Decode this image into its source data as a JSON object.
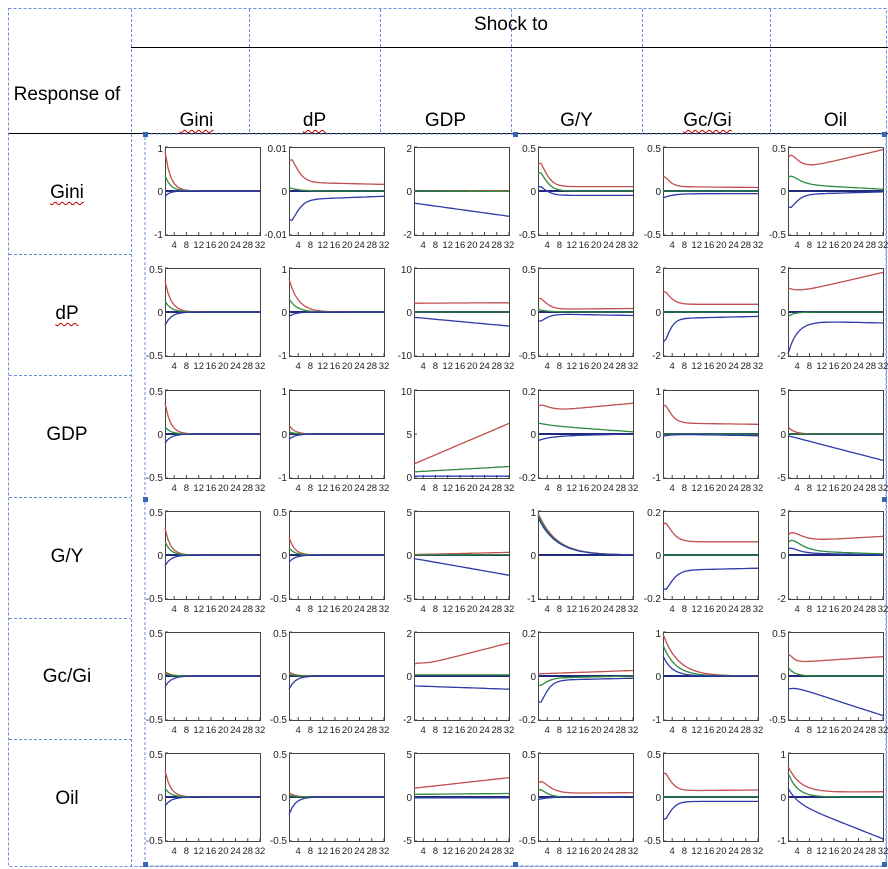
{
  "header": {
    "shock_title": "Shock to",
    "response_title": "Response of",
    "columns": [
      "Gini",
      "dP",
      "GDP",
      "G/Y",
      "Gc/Gi",
      "Oil"
    ],
    "rows": [
      "Gini",
      "dP",
      "GDP",
      "G/Y",
      "Gc/Gi",
      "Oil"
    ]
  },
  "colors": {
    "upper": "#c0504d",
    "middle": "#2e8b3e",
    "lower": "#2f3aa8",
    "zero": "#1f2a7a",
    "grid_dash": "#6b8fd6"
  },
  "x_ticks": [
    4,
    8,
    12,
    16,
    20,
    24,
    28,
    32
  ],
  "chart_data": {
    "type": "line",
    "horizon": 32,
    "panels": [
      [
        {
          "ylim": [
            -1,
            1
          ],
          "yticks": [
            "1",
            "0",
            "-1"
          ],
          "shapes": {
            "u": {
              "a": 0.9,
              "d": 1.8
            },
            "m": {
              "a": 0.35,
              "d": 1.8
            },
            "l": {
              "a": -0.12,
              "d": 1.5
            }
          }
        },
        {
          "ylim": [
            -0.01,
            0.01
          ],
          "yticks": [
            "0.01",
            "0",
            "-0.01"
          ],
          "shapes": {
            "u": {
              "a": 0.006,
              "d": 6,
              "p": 2,
              "i": 0.002,
              "e": 0.0015
            },
            "m": {
              "a": 0.0008,
              "d": 3
            },
            "l": {
              "a": -0.0055,
              "d": 6,
              "p": 2,
              "i": -0.002,
              "e": -0.0012
            }
          }
        },
        {
          "ylim": [
            -2,
            2
          ],
          "yticks": [
            "2",
            "0",
            "-2"
          ],
          "shapes": {
            "u": {
              "e": 0.02
            },
            "m": {
              "e": -0.02
            },
            "l": {
              "i": -0.55,
              "e": -1.15
            }
          }
        },
        {
          "ylim": [
            -0.5,
            0.5
          ],
          "yticks": [
            "0.5",
            "0",
            "-0.5"
          ],
          "shapes": {
            "u": {
              "a": 0.32,
              "d": 5,
              "p": 2,
              "i": 0.05
            },
            "m": {
              "a": 0.25,
              "d": 5,
              "p": 2
            },
            "l": {
              "a": 0.12,
              "d": 5,
              "p": 2,
              "i": -0.05
            }
          }
        },
        {
          "ylim": [
            -0.5,
            0.5
          ],
          "yticks": [
            "0.5",
            "0",
            "-0.5"
          ],
          "shapes": {
            "u": {
              "a": 0.14,
              "d": 3,
              "p": 2,
              "i": 0.05,
              "e": 0.04
            },
            "m": {
              "e": 0.0
            },
            "l": {
              "a": -0.05,
              "d": 3,
              "i": -0.03,
              "e": -0.03
            }
          }
        },
        {
          "ylim": [
            -0.5,
            0.5
          ],
          "yticks": [
            "0.5",
            "0",
            "-0.5"
          ],
          "shapes": {
            "u": {
              "a": 0.25,
              "d": 4,
              "p": 3,
              "i": 0.22,
              "e": 0.47
            },
            "m": {
              "a": 0.12,
              "d": 5,
              "p": 3,
              "i": 0.08,
              "e": 0.02
            },
            "l": {
              "a": -0.22,
              "d": 3,
              "p": 3,
              "i": -0.04,
              "e": -0.01
            }
          }
        }
      ],
      [
        {
          "ylim": [
            -0.5,
            0.5
          ],
          "yticks": [
            "0.5",
            "0",
            "-0.5"
          ],
          "shapes": {
            "u": {
              "a": 0.35,
              "d": 2
            },
            "m": {
              "a": 0.12,
              "d": 2
            },
            "l": {
              "a": -0.15,
              "d": 2
            }
          }
        },
        {
          "ylim": [
            -1,
            1
          ],
          "yticks": [
            "1",
            "0",
            "-1"
          ],
          "shapes": {
            "u": {
              "a": 0.75,
              "d": 3
            },
            "m": {
              "a": 0.3,
              "d": 2.5
            },
            "l": {
              "a": -0.1,
              "d": 2
            }
          }
        },
        {
          "ylim": [
            -10,
            10
          ],
          "yticks": [
            "10",
            "0",
            "-10"
          ],
          "shapes": {
            "u": {
              "i": 2,
              "e": 2.1
            },
            "m": {
              "e": 0
            },
            "l": {
              "i": -1.2,
              "e": -3.2
            }
          }
        },
        {
          "ylim": [
            -0.5,
            0.5
          ],
          "yticks": [
            "0.5",
            "0",
            "-0.5"
          ],
          "shapes": {
            "u": {
              "a": 0.15,
              "d": 5,
              "p": 2,
              "i": 0.03,
              "e": 0.04
            },
            "m": {
              "a": 0.03,
              "d": 3
            },
            "l": {
              "a": -0.1,
              "d": 5,
              "p": 2,
              "i": -0.02,
              "e": -0.04
            }
          }
        },
        {
          "ylim": [
            -2,
            2
          ],
          "yticks": [
            "2",
            "0",
            "-2"
          ],
          "shapes": {
            "u": {
              "a": 0.7,
              "d": 4,
              "p": 2,
              "i": 0.35,
              "e": 0.35
            },
            "m": {
              "e": 0
            },
            "l": {
              "a": -1.3,
              "d": 3,
              "p": 2,
              "i": -0.3,
              "e": -0.2
            }
          }
        },
        {
          "ylim": [
            -2,
            2
          ],
          "yticks": [
            "2",
            "0",
            "-2"
          ],
          "shapes": {
            "u": {
              "a": 0.3,
              "d": 3,
              "i": 0.8,
              "e": 1.8
            },
            "m": {
              "a": -0.2,
              "d": 2,
              "e": 0
            },
            "l": {
              "a": -1.5,
              "d": 3,
              "i": -0.4,
              "e": -0.5
            }
          }
        }
      ],
      [
        {
          "ylim": [
            -0.5,
            0.5
          ],
          "yticks": [
            "0.5",
            "0",
            "-0.5"
          ],
          "shapes": {
            "u": {
              "a": 0.35,
              "d": 1.8
            },
            "m": {
              "a": 0.08,
              "d": 1.8
            },
            "l": {
              "a": -0.1,
              "d": 2
            }
          }
        },
        {
          "ylim": [
            -1,
            1
          ],
          "yticks": [
            "1",
            "0",
            "-1"
          ],
          "shapes": {
            "u": {
              "a": 0.2,
              "d": 1.8
            },
            "m": {
              "a": 0.05,
              "d": 1.8
            },
            "l": {
              "a": -0.12,
              "d": 2
            }
          }
        },
        {
          "ylim": [
            0,
            10
          ],
          "yticks": [
            "10",
            "5",
            "0"
          ],
          "shapes": {
            "u": {
              "i": 1.6,
              "e": 6.2
            },
            "m": {
              "i": 0.7,
              "e": 1.3
            },
            "l": {
              "i": 0.2,
              "e": 0.2
            }
          }
        },
        {
          "ylim": [
            -0.2,
            0.2
          ],
          "yticks": [
            "0.2",
            "0",
            "-0.2"
          ],
          "shapes": {
            "u": {
              "a": 0.04,
              "d": 5,
              "p": 3,
              "i": 0.1,
              "e": 0.14
            },
            "m": {
              "a": 0.01,
              "d": 5,
              "i": 0.04,
              "e": 0.01
            },
            "l": {
              "a": -0.02,
              "d": 4,
              "i": -0.01,
              "e": 0.0
            }
          }
        },
        {
          "ylim": [
            -1,
            1
          ],
          "yticks": [
            "1",
            "0",
            "-1"
          ],
          "shapes": {
            "u": {
              "a": 0.5,
              "d": 4,
              "p": 2,
              "i": 0.25,
              "e": 0.22
            },
            "m": {
              "e": 0
            },
            "l": {
              "a": -0.05,
              "d": 3,
              "e": -0.04
            }
          }
        },
        {
          "ylim": [
            -5,
            5
          ],
          "yticks": [
            "5",
            "0",
            "-5"
          ],
          "shapes": {
            "u": {
              "a": 0.8,
              "d": 2,
              "e": 0
            },
            "m": {
              "e": 0
            },
            "l": {
              "i": -0.2,
              "e": -3
            }
          }
        }
      ],
      [
        {
          "ylim": [
            -0.5,
            0.5
          ],
          "yticks": [
            "0.5",
            "0",
            "-0.5"
          ],
          "shapes": {
            "u": {
              "a": 0.3,
              "d": 1.8
            },
            "m": {
              "a": 0.15,
              "d": 1.8
            },
            "l": {
              "a": -0.12,
              "d": 2
            }
          }
        },
        {
          "ylim": [
            -0.5,
            0.5
          ],
          "yticks": [
            "0.5",
            "0",
            "-0.5"
          ],
          "shapes": {
            "u": {
              "a": 0.2,
              "d": 1.8
            },
            "m": {
              "a": 0.08,
              "d": 1.8
            },
            "l": {
              "a": -0.08,
              "d": 2
            }
          }
        },
        {
          "ylim": [
            -5,
            5
          ],
          "yticks": [
            "5",
            "0",
            "-5"
          ],
          "shapes": {
            "u": {
              "i": 0.05,
              "e": 0.3
            },
            "m": {
              "e": 0.05
            },
            "l": {
              "i": -0.4,
              "e": -2.3
            }
          }
        },
        {
          "ylim": [
            -1,
            1
          ],
          "yticks": [
            "1",
            "0",
            "-1"
          ],
          "shapes": {
            "u": {
              "a": 0.95,
              "d": 6,
              "i": 0,
              "e": 0
            },
            "m": {
              "a": 0.9,
              "d": 6
            },
            "l": {
              "a": 0.85,
              "d": 6
            }
          }
        },
        {
          "ylim": [
            -0.2,
            0.2
          ],
          "yticks": [
            "0.2",
            "0",
            "-0.2"
          ],
          "shapes": {
            "u": {
              "a": 0.1,
              "d": 6,
              "p": 2,
              "i": 0.06,
              "e": 0.06
            },
            "m": {
              "e": 0
            },
            "l": {
              "a": -0.1,
              "d": 7,
              "p": 2,
              "i": -0.07,
              "e": -0.06
            }
          }
        },
        {
          "ylim": [
            -2,
            2
          ],
          "yticks": [
            "2",
            "0",
            "-2"
          ],
          "shapes": {
            "u": {
              "a": 0.6,
              "d": 5,
              "p": 4,
              "i": 0.6,
              "e": 0.85
            },
            "m": {
              "a": 0.7,
              "d": 5,
              "p": 4,
              "i": 0.2,
              "e": 0.05
            },
            "l": {
              "a": 0.3,
              "d": 4,
              "p": 3,
              "i": 0.1,
              "e": 0.0
            }
          }
        }
      ],
      [
        {
          "ylim": [
            -0.5,
            0.5
          ],
          "yticks": [
            "0.5",
            "0",
            "-0.5"
          ],
          "shapes": {
            "u": {
              "a": 0.05,
              "d": 1.8
            },
            "m": {
              "a": 0.03,
              "d": 1.8
            },
            "l": {
              "a": -0.12,
              "d": 2
            }
          }
        },
        {
          "ylim": [
            -0.5,
            0.5
          ],
          "yticks": [
            "0.5",
            "0",
            "-0.5"
          ],
          "shapes": {
            "u": {
              "a": 0.05,
              "d": 1.8
            },
            "m": {
              "a": 0.02,
              "d": 1.8
            },
            "l": {
              "a": -0.15,
              "d": 2
            }
          }
        },
        {
          "ylim": [
            -2,
            2
          ],
          "yticks": [
            "2",
            "0",
            "-2"
          ],
          "shapes": {
            "u": {
              "a": 0.2,
              "d": 4,
              "p": 3,
              "i": 0.4,
              "e": 1.5
            },
            "m": {
              "i": 0.05,
              "e": 0.05
            },
            "l": {
              "i": -0.45,
              "e": -0.6
            }
          }
        },
        {
          "ylim": [
            -0.2,
            0.2
          ],
          "yticks": [
            "0.2",
            "0",
            "-0.2"
          ],
          "shapes": {
            "u": {
              "i": 0.01,
              "e": 0.025
            },
            "m": {
              "a": -0.04,
              "d": 5,
              "p": 2,
              "i": -0.01,
              "e": 0.0
            },
            "l": {
              "a": -0.12,
              "d": 5,
              "p": 2,
              "i": -0.02,
              "e": -0.01
            }
          }
        },
        {
          "ylim": [
            -1,
            1
          ],
          "yticks": [
            "1",
            "0",
            "-1"
          ],
          "shapes": {
            "u": {
              "a": 0.95,
              "d": 5,
              "e": 0
            },
            "m": {
              "a": 0.7,
              "d": 4,
              "e": 0
            },
            "l": {
              "a": 0.45,
              "d": 3,
              "e": 0
            }
          }
        },
        {
          "ylim": [
            -0.5,
            0.5
          ],
          "yticks": [
            "0.5",
            "0",
            "-0.5"
          ],
          "shapes": {
            "u": {
              "a": 0.12,
              "d": 2,
              "p": 2,
              "i": 0.15,
              "e": 0.22
            },
            "m": {
              "a": 0.1,
              "d": 2
            },
            "l": {
              "a": -0.05,
              "d": 2,
              "i": -0.1,
              "e": -0.45
            }
          }
        }
      ],
      [
        {
          "ylim": [
            -0.5,
            0.5
          ],
          "yticks": [
            "0.5",
            "0",
            "-0.5"
          ],
          "shapes": {
            "u": {
              "a": 0.3,
              "d": 1.8
            },
            "m": {
              "a": 0.1,
              "d": 1.8
            },
            "l": {
              "a": -0.1,
              "d": 2
            }
          }
        },
        {
          "ylim": [
            -0.5,
            0.5
          ],
          "yticks": [
            "0.5",
            "0",
            "-0.5"
          ],
          "shapes": {
            "u": {
              "a": 0.05,
              "d": 1.8
            },
            "m": {
              "a": 0.02,
              "d": 1.8
            },
            "l": {
              "a": -0.2,
              "d": 2
            }
          }
        },
        {
          "ylim": [
            -5,
            5
          ],
          "yticks": [
            "5",
            "0",
            "-5"
          ],
          "shapes": {
            "u": {
              "i": 1,
              "e": 2.2
            },
            "m": {
              "i": 0.3,
              "e": 0.4
            },
            "l": {
              "i": -0.1,
              "e": -0.1
            }
          }
        },
        {
          "ylim": [
            -0.5,
            0.5
          ],
          "yticks": [
            "0.5",
            "0",
            "-0.5"
          ],
          "shapes": {
            "u": {
              "a": 0.18,
              "d": 5,
              "p": 3,
              "i": 0.04,
              "e": 0.05
            },
            "m": {
              "a": 0.1,
              "d": 5,
              "p": 2
            },
            "l": {
              "a": -0.03,
              "d": 3
            }
          }
        },
        {
          "ylim": [
            -0.5,
            0.5
          ],
          "yticks": [
            "0.5",
            "0",
            "-0.5"
          ],
          "shapes": {
            "u": {
              "a": 0.25,
              "d": 4,
              "p": 2,
              "i": 0.07,
              "e": 0.08
            },
            "m": {
              "e": 0
            },
            "l": {
              "a": -0.25,
              "d": 4,
              "p": 2,
              "i": -0.05,
              "e": -0.05
            }
          }
        },
        {
          "ylim": [
            -1,
            1
          ],
          "yticks": [
            "1",
            "0",
            "-1"
          ],
          "shapes": {
            "u": {
              "a": 0.6,
              "d": 4,
              "i": 0.1,
              "e": 0.12
            },
            "m": {
              "a": 0.55,
              "d": 3
            },
            "l": {
              "a": 0.3,
              "d": 3,
              "i": -0.1,
              "e": -0.95
            }
          }
        }
      ]
    ]
  }
}
